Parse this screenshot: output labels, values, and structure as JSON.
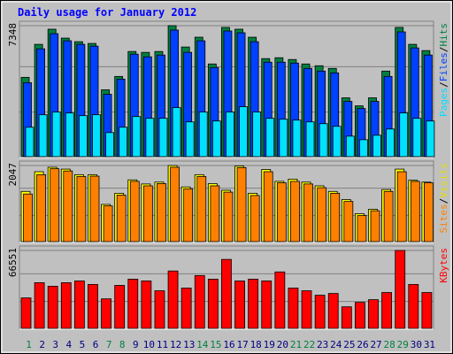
{
  "chart_data": [
    {
      "type": "bar",
      "title": "Daily usage for January 2012",
      "ylim": [
        0,
        7348
      ],
      "yticks": [
        7348
      ],
      "legend": "right",
      "separator": "/",
      "series": [
        {
          "name": "Hits",
          "color": "#008040",
          "values": [
            4450,
            6300,
            7150,
            6650,
            6450,
            6350,
            3750,
            4500,
            5900,
            5850,
            5900,
            7348,
            6150,
            6700,
            5200,
            7250,
            7150,
            6700,
            5500,
            5550,
            5450,
            5200,
            5100,
            4950,
            3300,
            2850,
            3300,
            4800,
            7250,
            6300,
            5950
          ]
        },
        {
          "name": "Files",
          "color": "#0040ff",
          "values": [
            4150,
            6050,
            6900,
            6500,
            6300,
            6200,
            3500,
            4350,
            5750,
            5600,
            5700,
            7100,
            5850,
            6500,
            5000,
            7050,
            6950,
            6450,
            5300,
            5300,
            5250,
            4950,
            4800,
            4700,
            3100,
            2700,
            3100,
            4500,
            7000,
            6100,
            5700
          ]
        },
        {
          "name": "Pages",
          "color": "#00e0ff",
          "values": [
            1650,
            2350,
            2500,
            2450,
            2300,
            2350,
            1350,
            1650,
            2250,
            2150,
            2150,
            2750,
            1950,
            2500,
            2000,
            2500,
            2800,
            2500,
            2150,
            2100,
            2050,
            1950,
            1850,
            1700,
            1150,
            950,
            1200,
            1550,
            2450,
            2150,
            2000
          ]
        }
      ]
    },
    {
      "type": "bar",
      "ylim": [
        0,
        2047
      ],
      "yticks": [
        2047
      ],
      "legend": "right",
      "separator": "/",
      "series": [
        {
          "name": "Visits",
          "color": "#ffff00",
          "values": [
            1350,
            1880,
            2000,
            1950,
            1800,
            1800,
            1000,
            1300,
            1660,
            1550,
            1600,
            2047,
            1470,
            1800,
            1560,
            1380,
            2030,
            1300,
            1940,
            1620,
            1680,
            1600,
            1500,
            1350,
            1130,
            750,
            870,
            1400,
            1950,
            1650,
            1600
          ]
        },
        {
          "name": "Sites",
          "color": "#ff8000",
          "values": [
            1280,
            1800,
            1960,
            1900,
            1750,
            1760,
            960,
            1250,
            1620,
            1500,
            1560,
            2000,
            1420,
            1750,
            1500,
            1330,
            1990,
            1240,
            1880,
            1580,
            1620,
            1550,
            1450,
            1300,
            1080,
            700,
            830,
            1350,
            1880,
            1620,
            1580
          ]
        }
      ]
    },
    {
      "type": "bar",
      "ylim": [
        0,
        66551
      ],
      "yticks": [
        66551
      ],
      "legend": "right",
      "categories": [
        "1",
        "2",
        "3",
        "4",
        "5",
        "6",
        "7",
        "8",
        "9",
        "10",
        "11",
        "12",
        "13",
        "14",
        "15",
        "16",
        "17",
        "18",
        "19",
        "20",
        "21",
        "22",
        "23",
        "24",
        "25",
        "26",
        "27",
        "28",
        "29",
        "30",
        "31"
      ],
      "weekend": [
        0,
        6,
        7,
        13,
        14,
        20,
        21,
        27,
        28
      ],
      "weekend_color": "#008040",
      "series": [
        {
          "name": "KBytes",
          "color": "#ff0000",
          "values": [
            26000,
            39000,
            36000,
            39000,
            40500,
            37500,
            25200,
            36700,
            42000,
            40500,
            32100,
            49000,
            34400,
            45100,
            42000,
            58900,
            40500,
            42000,
            40500,
            48200,
            34400,
            32100,
            28300,
            29800,
            18400,
            22200,
            24500,
            30600,
            66551,
            37500,
            30600
          ]
        }
      ]
    }
  ]
}
